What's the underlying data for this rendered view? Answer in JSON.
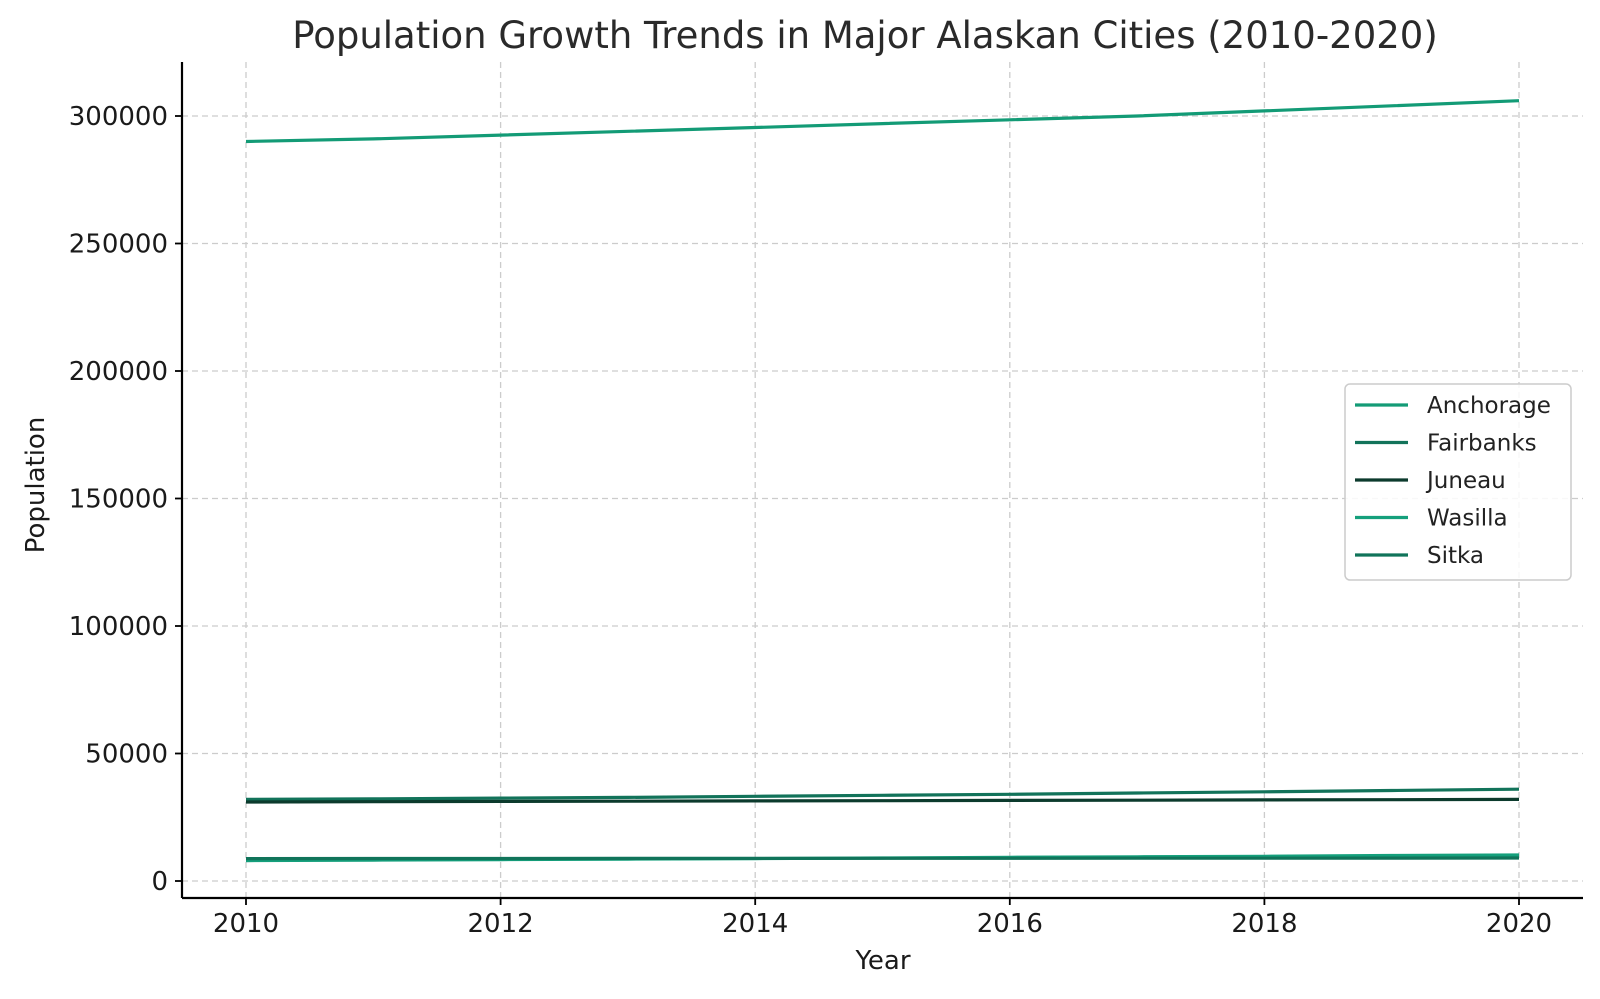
{
  "chart_data": {
    "type": "line",
    "title": "Population Growth Trends in Major Alaskan Cities (2010-2020)",
    "xlabel": "Year",
    "ylabel": "Population",
    "x": [
      2010,
      2011,
      2012,
      2013,
      2014,
      2015,
      2016,
      2017,
      2018,
      2019,
      2020
    ],
    "xlim": [
      2009.5,
      2020.5
    ],
    "ylim": [
      -7000,
      323000
    ],
    "xticks": [
      2010,
      2012,
      2014,
      2016,
      2018,
      2020
    ],
    "yticks": [
      0,
      50000,
      100000,
      150000,
      200000,
      250000,
      300000
    ],
    "xtick_labels": [
      "2010",
      "2012",
      "2014",
      "2016",
      "2018",
      "2020"
    ],
    "ytick_labels": [
      "0",
      "50000",
      "100000",
      "150000",
      "200000",
      "250000",
      "300000"
    ],
    "grid": true,
    "legend_position": "center right",
    "series": [
      {
        "name": "Anchorage",
        "color": "#139b76",
        "values": [
          290000,
          291000,
          292500,
          294000,
          295500,
          297000,
          298500,
          300000,
          302000,
          304000,
          306000
        ]
      },
      {
        "name": "Fairbanks",
        "color": "#12735a",
        "values": [
          32000,
          32200,
          32500,
          32800,
          33200,
          33600,
          34000,
          34500,
          35000,
          35500,
          36000
        ]
      },
      {
        "name": "Juneau",
        "color": "#0c3b2d",
        "values": [
          31000,
          31100,
          31200,
          31300,
          31400,
          31500,
          31600,
          31700,
          31800,
          31900,
          32000
        ]
      },
      {
        "name": "Wasilla",
        "color": "#15a07c",
        "values": [
          8000,
          8200,
          8400,
          8600,
          8800,
          9000,
          9300,
          9500,
          9700,
          10000,
          10200
        ]
      },
      {
        "name": "Sitka",
        "color": "#10745a",
        "values": [
          8800,
          8820,
          8840,
          8860,
          8880,
          8900,
          8920,
          8940,
          8960,
          8980,
          9000
        ]
      }
    ]
  }
}
